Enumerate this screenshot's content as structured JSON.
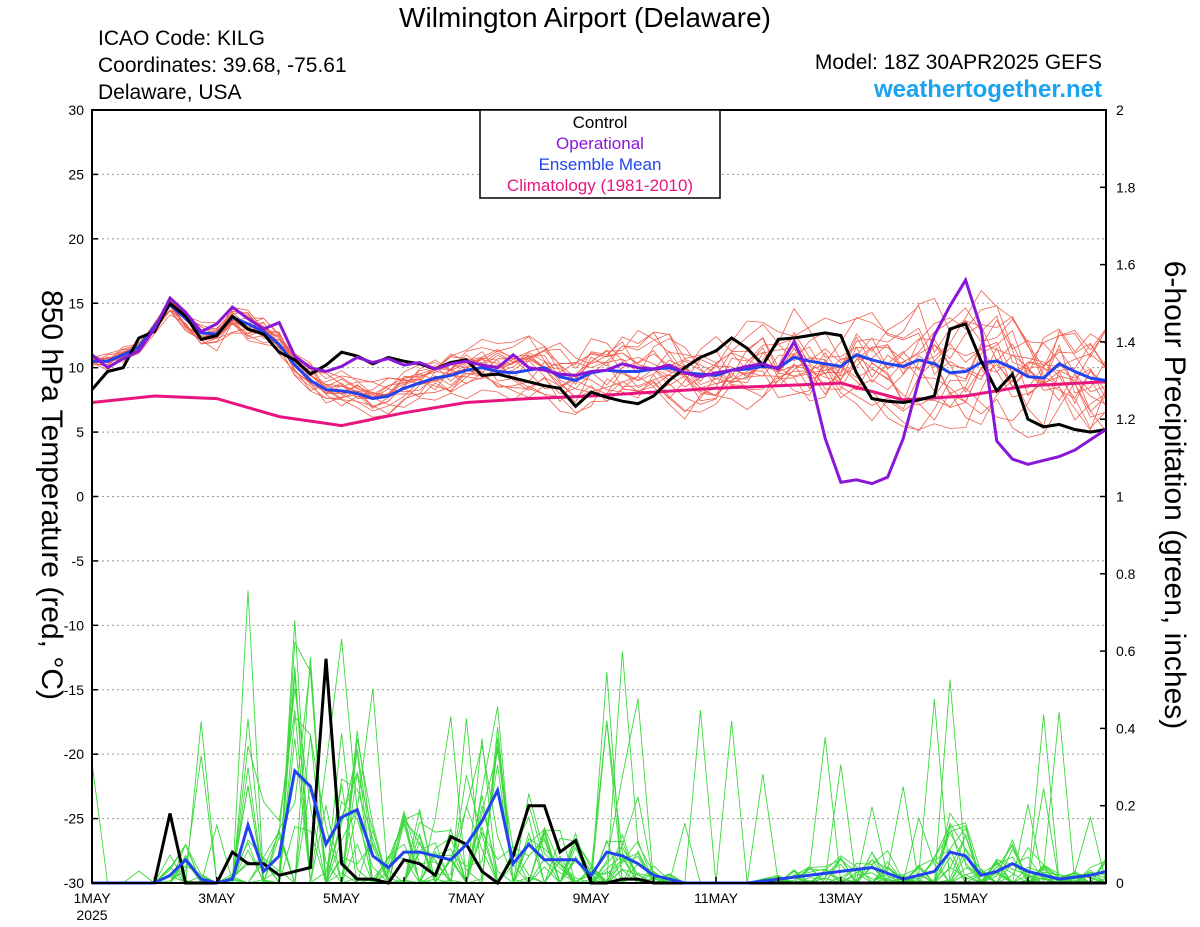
{
  "header": {
    "title": "Wilmington Airport (Delaware)",
    "icao": "ICAO Code: KILG",
    "coords": "Coordinates: 39.68, -75.61",
    "region": "Delaware, USA",
    "model": "Model: 18Z 30APR2025 GEFS",
    "site": "weathertogether.net"
  },
  "colors": {
    "member_temp": "#f06050",
    "member_precip": "#3cd83c",
    "control": "#000000",
    "operational": "#8a16d8",
    "ensemble_mean": "#2244ee",
    "climatology": "#e8157f",
    "site": "#1aa3ee"
  },
  "chart_data": {
    "type": "line",
    "left_axis": {
      "label": "850 hPa Temperature (red, °C)",
      "range": [
        -30,
        30
      ],
      "ticks": [
        30,
        25,
        20,
        15,
        10,
        5,
        0,
        -5,
        -10,
        -15,
        -20,
        -25,
        -30
      ]
    },
    "right_axis": {
      "label": "6-hour Precipitation (green, inches)",
      "range": [
        0,
        2
      ],
      "ticks": [
        "2",
        "1.8",
        "1.6",
        "1.4",
        "1.2",
        "1",
        "0.8",
        "0.6",
        "0.4",
        "0.2",
        "0"
      ]
    },
    "x_axis": {
      "range_days": [
        0,
        16.25
      ],
      "ticks": [
        {
          "day": 0,
          "label": "1MAY"
        },
        {
          "day": 2,
          "label": "3MAY"
        },
        {
          "day": 4,
          "label": "5MAY"
        },
        {
          "day": 6,
          "label": "7MAY"
        },
        {
          "day": 8,
          "label": "9MAY"
        },
        {
          "day": 10,
          "label": "11MAY"
        },
        {
          "day": 12,
          "label": "13MAY"
        },
        {
          "day": 14,
          "label": "15MAY"
        }
      ],
      "year_label": "2025"
    },
    "legend": {
      "placement": "top-center",
      "entries": [
        {
          "name": "Control",
          "color": "#000000"
        },
        {
          "name": "Operational",
          "color": "#8a16d8"
        },
        {
          "name": "Ensemble Mean",
          "color": "#2244ee"
        },
        {
          "name": "Climatology (1981-2010)",
          "color": "#e8157f"
        }
      ]
    },
    "series": {
      "climatology_temp": {
        "x": [
          0,
          1,
          2,
          3,
          4,
          5,
          6,
          7,
          8,
          9,
          10,
          11,
          12,
          13,
          14,
          15,
          16.25
        ],
        "y": [
          7.3,
          7.8,
          7.6,
          6.2,
          5.5,
          6.5,
          7.3,
          7.6,
          7.8,
          8.1,
          8.4,
          8.6,
          8.8,
          7.5,
          7.8,
          8.6,
          8.9
        ]
      },
      "control_temp": {
        "x": [
          0,
          0.25,
          0.5,
          0.75,
          1,
          1.25,
          1.5,
          1.75,
          2,
          2.25,
          2.5,
          2.75,
          3,
          3.25,
          3.5,
          3.75,
          4,
          4.25,
          4.5,
          4.75,
          5,
          5.25,
          5.5,
          5.75,
          6,
          6.25,
          6.5,
          6.75,
          7,
          7.25,
          7.5,
          7.75,
          8,
          8.25,
          8.5,
          8.75,
          9,
          9.25,
          9.5,
          9.75,
          10,
          10.25,
          10.5,
          10.75,
          11,
          11.25,
          11.5,
          11.75,
          12,
          12.25,
          12.5,
          12.75,
          13,
          13.25,
          13.5,
          13.75,
          14,
          14.25,
          14.5,
          14.75,
          15,
          15.25,
          15.5,
          15.75,
          16,
          16.25
        ],
        "y": [
          8.3,
          9.7,
          10.0,
          12.3,
          12.8,
          15.0,
          14.0,
          12.2,
          12.5,
          14.0,
          13.0,
          12.6,
          11.2,
          10.6,
          9.5,
          10.2,
          11.2,
          10.9,
          10.3,
          10.8,
          10.5,
          10.3,
          9.9,
          10.4,
          10.6,
          9.4,
          9.5,
          9.2,
          8.9,
          8.6,
          8.4,
          7.0,
          8.1,
          7.7,
          7.4,
          7.2,
          7.8,
          9.0,
          10.0,
          10.8,
          11.3,
          12.3,
          11.5,
          10.2,
          12.2,
          12.3,
          12.5,
          12.7,
          12.5,
          9.6,
          7.6,
          7.4,
          7.3,
          7.5,
          7.8,
          13.0,
          13.4,
          10.5,
          8.2,
          9.5,
          6.0,
          5.4,
          5.6,
          5.2,
          5.0,
          5.2
        ]
      },
      "operational_temp": {
        "x": [
          0,
          0.25,
          0.5,
          0.75,
          1,
          1.25,
          1.5,
          1.75,
          2,
          2.25,
          2.5,
          2.75,
          3,
          3.25,
          3.5,
          3.75,
          4,
          4.25,
          4.5,
          4.75,
          5,
          5.25,
          5.5,
          5.75,
          6,
          6.25,
          6.5,
          6.75,
          7,
          7.25,
          7.5,
          7.75,
          8,
          8.25,
          8.5,
          8.75,
          9,
          9.25,
          9.5,
          9.75,
          10,
          10.25,
          10.5,
          10.75,
          11,
          11.25,
          11.5,
          11.75,
          12,
          12.25,
          12.5,
          12.75,
          13,
          13.25,
          13.5,
          13.75,
          14,
          14.25,
          14.5,
          14.75,
          15,
          15.25,
          15.5,
          15.75,
          16,
          16.25
        ],
        "y": [
          11.0,
          10.0,
          10.7,
          11.3,
          13.0,
          15.4,
          14.3,
          12.8,
          13.4,
          14.7,
          13.8,
          13.0,
          13.5,
          10.9,
          10.0,
          9.7,
          10.1,
          10.8,
          10.4,
          10.7,
          10.2,
          10.4,
          9.9,
          10.3,
          10.5,
          10.2,
          10.0,
          11.0,
          10.0,
          9.8,
          9.5,
          9.4,
          9.7,
          9.8,
          10.3,
          10.0,
          9.9,
          10.2,
          9.6,
          9.3,
          9.6,
          9.8,
          10.1,
          10.3,
          9.9,
          12.0,
          9.5,
          4.5,
          1.1,
          1.3,
          1.0,
          1.5,
          4.5,
          9.0,
          12.5,
          14.8,
          16.8,
          13.0,
          4.3,
          2.9,
          2.5,
          2.8,
          3.1,
          3.6,
          4.4,
          5.2
        ]
      },
      "ensemble_mean_temp": {
        "x": [
          0,
          0.25,
          0.5,
          0.75,
          1,
          1.25,
          1.5,
          1.75,
          2,
          2.25,
          2.5,
          2.75,
          3,
          3.25,
          3.5,
          3.75,
          4,
          4.25,
          4.5,
          4.75,
          5,
          5.25,
          5.5,
          5.75,
          6,
          6.25,
          6.5,
          6.75,
          7,
          7.25,
          7.5,
          7.75,
          8,
          8.25,
          8.5,
          8.75,
          9,
          9.25,
          9.5,
          9.75,
          10,
          10.25,
          10.5,
          10.75,
          11,
          11.25,
          11.5,
          11.75,
          12,
          12.25,
          12.5,
          12.75,
          13,
          13.25,
          13.5,
          13.75,
          14,
          14.25,
          14.5,
          14.75,
          15,
          15.25,
          15.5,
          15.75,
          16,
          16.25
        ],
        "y": [
          10.5,
          10.5,
          11.0,
          11.6,
          13.2,
          14.9,
          13.8,
          12.7,
          12.6,
          13.9,
          13.4,
          12.8,
          11.8,
          10.2,
          9.0,
          8.3,
          8.2,
          8.0,
          7.6,
          7.8,
          8.4,
          8.8,
          9.2,
          9.4,
          9.8,
          10.0,
          9.7,
          9.6,
          9.8,
          10.0,
          9.3,
          9.0,
          9.6,
          9.8,
          9.7,
          9.7,
          9.9,
          10.0,
          9.6,
          9.5,
          9.4,
          9.8,
          9.9,
          10.1,
          10.0,
          10.8,
          10.5,
          10.3,
          10.1,
          11.0,
          10.6,
          10.3,
          10.1,
          10.6,
          10.3,
          9.6,
          9.7,
          10.4,
          10.5,
          10.0,
          9.3,
          9.2,
          10.3,
          9.7,
          9.2,
          9.0
        ]
      },
      "control_precip": {
        "x": [
          0,
          0.5,
          1,
          1.25,
          1.5,
          1.75,
          2,
          2.25,
          2.5,
          2.75,
          3,
          3.25,
          3.5,
          3.75,
          4,
          4.25,
          4.5,
          4.75,
          5,
          5.25,
          5.5,
          5.75,
          6,
          6.25,
          6.5,
          6.75,
          7,
          7.25,
          7.5,
          7.75,
          8,
          8.25,
          8.5,
          8.75,
          9,
          9.25,
          9.5,
          9.75,
          16.25
        ],
        "y": [
          0,
          0,
          0,
          0.18,
          0,
          0,
          0,
          0.08,
          0.05,
          0.05,
          0.02,
          0.03,
          0.04,
          0.58,
          0.05,
          0.01,
          0.01,
          0,
          0.06,
          0.05,
          0.02,
          0.12,
          0.1,
          0.03,
          0,
          0.07,
          0.2,
          0.2,
          0.08,
          0.11,
          0,
          0,
          0.01,
          0.01,
          0,
          0,
          0,
          0,
          0
        ]
      },
      "ensemble_mean_precip": {
        "x": [
          0,
          0.5,
          1,
          1.25,
          1.5,
          1.75,
          2,
          2.25,
          2.5,
          2.75,
          3,
          3.25,
          3.5,
          3.75,
          4,
          4.25,
          4.5,
          4.75,
          5,
          5.25,
          5.5,
          5.75,
          6,
          6.25,
          6.5,
          6.75,
          7,
          7.25,
          7.5,
          7.75,
          8,
          8.25,
          8.5,
          8.75,
          9,
          9.25,
          9.5,
          9.75,
          10,
          10.5,
          11,
          11.5,
          12,
          12.5,
          13,
          13.25,
          13.5,
          13.75,
          14,
          14.25,
          14.5,
          14.75,
          15,
          15.5,
          16,
          16.25
        ],
        "y": [
          0,
          0,
          0,
          0.02,
          0.06,
          0.01,
          0,
          0.01,
          0.15,
          0.03,
          0.07,
          0.29,
          0.25,
          0.1,
          0.17,
          0.19,
          0.07,
          0.04,
          0.08,
          0.08,
          0.07,
          0.06,
          0.1,
          0.16,
          0.24,
          0.05,
          0.1,
          0.06,
          0.06,
          0.06,
          0.02,
          0.08,
          0.07,
          0.05,
          0.02,
          0.01,
          0,
          0,
          0,
          0,
          0.01,
          0.02,
          0.03,
          0.04,
          0.01,
          0.02,
          0.03,
          0.08,
          0.07,
          0.02,
          0.03,
          0.05,
          0.03,
          0.01,
          0.02,
          0.03
        ]
      }
    }
  }
}
